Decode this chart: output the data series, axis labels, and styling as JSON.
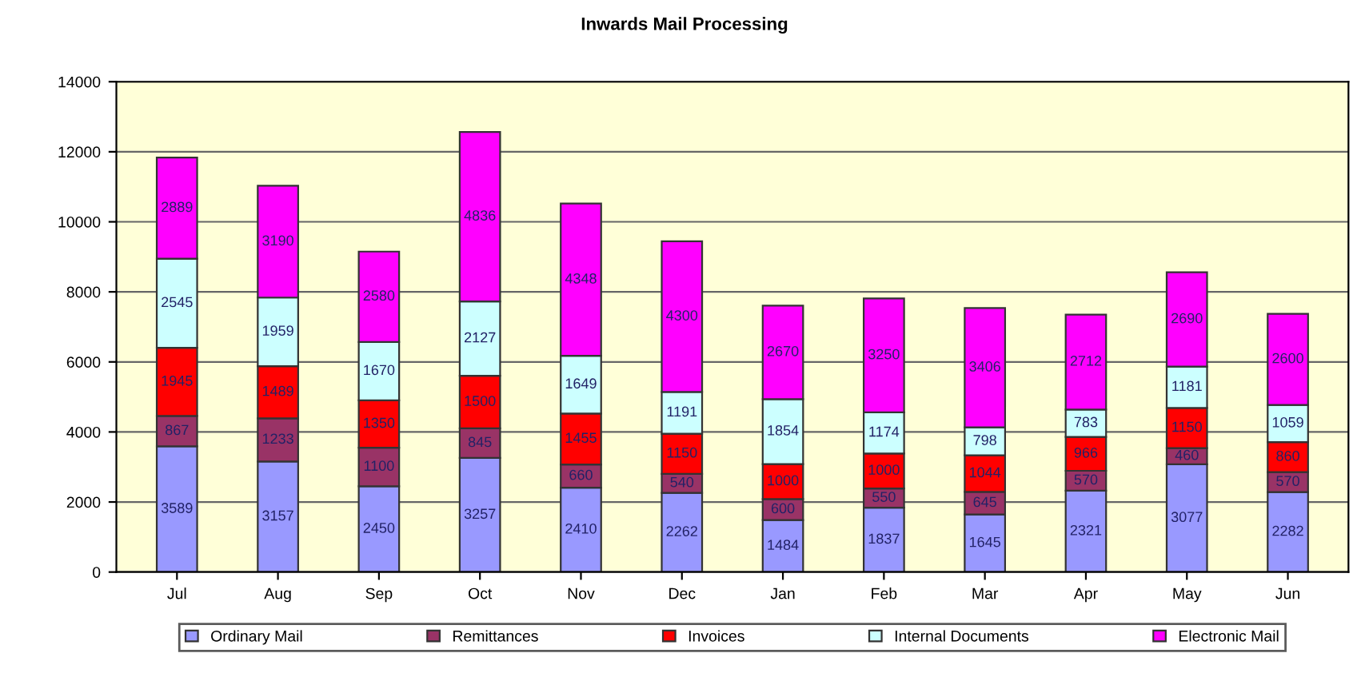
{
  "chart_data": {
    "type": "bar",
    "stacked": true,
    "title": "Inwards Mail Processing",
    "categories": [
      "Jul",
      "Aug",
      "Sep",
      "Oct",
      "Nov",
      "Dec",
      "Jan",
      "Feb",
      "Mar",
      "Apr",
      "May",
      "Jun"
    ],
    "series": [
      {
        "name": "Ordinary Mail",
        "color": "#9999ff",
        "values": [
          3589,
          3157,
          2450,
          3257,
          2410,
          2262,
          1484,
          1837,
          1645,
          2321,
          3077,
          2282
        ]
      },
      {
        "name": "Remittances",
        "color": "#993366",
        "values": [
          867,
          1233,
          1100,
          845,
          660,
          540,
          600,
          550,
          645,
          570,
          460,
          570
        ]
      },
      {
        "name": "Invoices",
        "color": "#ff0000",
        "values": [
          1945,
          1489,
          1350,
          1500,
          1455,
          1150,
          1000,
          1000,
          1044,
          966,
          1150,
          860
        ]
      },
      {
        "name": "Internal Documents",
        "color": "#ccffff",
        "values": [
          2545,
          1959,
          1670,
          2127,
          1649,
          1191,
          1854,
          1174,
          798,
          783,
          1181,
          1059
        ]
      },
      {
        "name": "Electronic Mail",
        "color": "#ff00ff",
        "values": [
          2889,
          3190,
          2580,
          4836,
          4348,
          4300,
          2670,
          3250,
          3406,
          2712,
          2690,
          2600
        ]
      }
    ],
    "ylim": [
      0,
      14000
    ],
    "yticks": [
      0,
      2000,
      4000,
      6000,
      8000,
      10000,
      12000,
      14000
    ],
    "grid": "y",
    "legend": "bottom",
    "data_labels": true
  }
}
